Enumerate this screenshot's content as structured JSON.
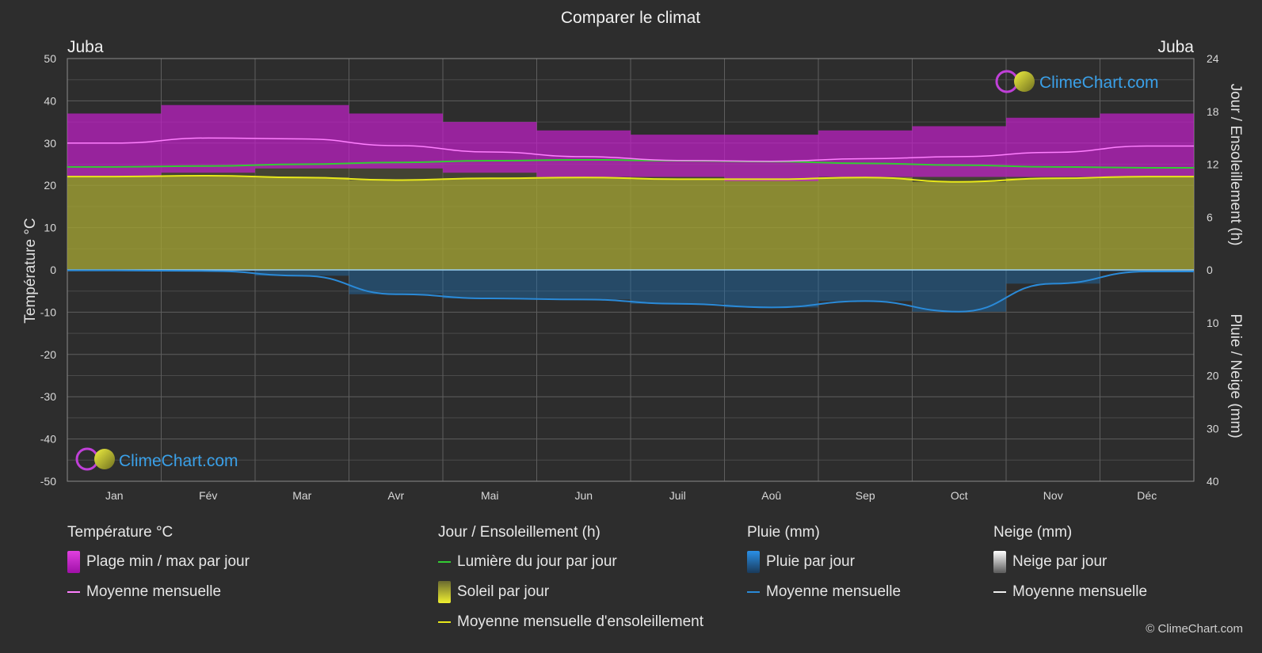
{
  "title": "Comparer le climat",
  "city_left": "Juba",
  "city_right": "Juba",
  "axis": {
    "left_label": "Température °C",
    "right_top_label": "Jour / Ensoleillement (h)",
    "right_bottom_label": "Pluie / Neige (mm)",
    "left_ticks": [
      50,
      40,
      30,
      20,
      10,
      0,
      -10,
      -20,
      -30,
      -40,
      -50
    ],
    "right_top_ticks": [
      24,
      18,
      12,
      6,
      0
    ],
    "right_bottom_ticks": [
      10,
      20,
      30,
      40
    ]
  },
  "colors": {
    "background": "#2d2d2d",
    "temp_band": "#c020c8",
    "temp_line": "#ff80ff",
    "sun_band": "#b5b532",
    "sun_line": "#e8e81a",
    "daylight_line": "#33cc33",
    "rain_band": "#1e6fb0",
    "rain_line": "#2a8ad8",
    "grid": "#5a5a5a",
    "brand": "#3aa0e8"
  },
  "brand": "ClimeChart.com",
  "copyright": "© ClimeChart.com",
  "chart_data": {
    "type": "area",
    "months": [
      "Jan",
      "Fév",
      "Mar",
      "Avr",
      "Mai",
      "Jun",
      "Juil",
      "Aoû",
      "Sep",
      "Oct",
      "Nov",
      "Déc"
    ],
    "temp_ylim": [
      -50,
      50
    ],
    "hours_ylim": [
      0,
      24
    ],
    "precip_ylim": [
      0,
      40
    ],
    "series": [
      {
        "name": "Plage min / max par jour",
        "unit": "°C",
        "min": [
          22,
          23,
          24,
          24,
          23,
          22,
          22,
          21,
          22,
          22,
          22,
          22
        ],
        "max": [
          37,
          39,
          39,
          37,
          35,
          33,
          32,
          32,
          33,
          34,
          36,
          37
        ]
      },
      {
        "name": "Moyenne mensuelle",
        "unit": "°C",
        "values": [
          30.0,
          31.2,
          31.0,
          29.4,
          27.9,
          26.8,
          25.9,
          25.7,
          26.3,
          26.8,
          27.8,
          29.3
        ]
      },
      {
        "name": "Lumière du jour par jour",
        "unit": "h",
        "values": [
          11.7,
          11.8,
          12.0,
          12.2,
          12.4,
          12.5,
          12.4,
          12.3,
          12.1,
          11.9,
          11.7,
          11.6
        ]
      },
      {
        "name": "Moyenne mensuelle d'ensoleillement",
        "unit": "h",
        "values": [
          10.6,
          10.7,
          10.5,
          10.2,
          10.4,
          10.5,
          10.3,
          10.3,
          10.5,
          10.0,
          10.4,
          10.6
        ]
      },
      {
        "name": "Moyenne mensuelle",
        "unit": "mm",
        "kind": "rain",
        "values": [
          0.1,
          0.2,
          1.1,
          4.6,
          5.4,
          5.6,
          6.4,
          7.1,
          5.9,
          7.9,
          2.6,
          0.3
        ]
      },
      {
        "name": "Moyenne mensuelle",
        "unit": "mm",
        "kind": "snow",
        "values": [
          0,
          0,
          0,
          0,
          0,
          0,
          0,
          0,
          0,
          0,
          0,
          0
        ]
      }
    ]
  },
  "legend": {
    "temp": {
      "header": "Température °C",
      "range": "Plage min / max par jour",
      "mean": "Moyenne mensuelle"
    },
    "sun": {
      "header": "Jour / Ensoleillement (h)",
      "daylight": "Lumière du jour par jour",
      "sunshine": "Soleil par jour",
      "sun_mean": "Moyenne mensuelle d'ensoleillement"
    },
    "rain": {
      "header": "Pluie (mm)",
      "per_day": "Pluie par jour",
      "mean": "Moyenne mensuelle"
    },
    "snow": {
      "header": "Neige (mm)",
      "per_day": "Neige par jour",
      "mean": "Moyenne mensuelle"
    }
  }
}
